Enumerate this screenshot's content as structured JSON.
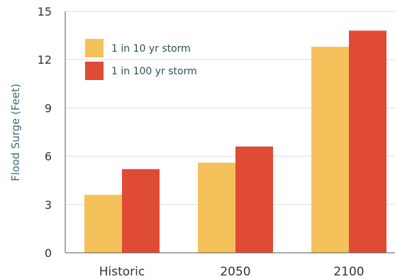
{
  "chart_data": {
    "type": "bar",
    "title": "",
    "xlabel": "",
    "ylabel": "Flood Surge (Feet)",
    "categories": [
      "Historic",
      "2050",
      "2100"
    ],
    "series": [
      {
        "name": "1 in 10 yr storm",
        "values": [
          3.6,
          5.6,
          12.8
        ],
        "color": "#F4C15A"
      },
      {
        "name": "1 in 100 yr storm",
        "values": [
          5.2,
          6.6,
          13.8
        ],
        "color": "#E04B35"
      }
    ],
    "ylim": [
      0,
      15
    ],
    "yticks": [
      "0",
      "3",
      "6",
      "9",
      "12",
      "15"
    ],
    "grid": true,
    "legend_position": "top-left"
  }
}
